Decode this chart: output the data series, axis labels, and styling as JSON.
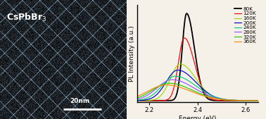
{
  "temperatures": [
    80,
    120,
    160,
    200,
    240,
    280,
    320,
    360
  ],
  "colors": [
    "#000000",
    "#ff0000",
    "#99dd00",
    "#0000cc",
    "#00cc88",
    "#9955ff",
    "#22cc00",
    "#ff8800"
  ],
  "peak_energies": [
    2.355,
    2.345,
    2.328,
    2.318,
    2.308,
    2.295,
    2.282,
    2.27
  ],
  "peak_heights": [
    1.0,
    0.72,
    0.42,
    0.35,
    0.28,
    0.24,
    0.2,
    0.18
  ],
  "widths_left": [
    0.018,
    0.024,
    0.04,
    0.048,
    0.055,
    0.062,
    0.068,
    0.074
  ],
  "widths_right": [
    0.032,
    0.042,
    0.065,
    0.075,
    0.085,
    0.09,
    0.095,
    0.1
  ],
  "xlim": [
    2.15,
    2.65
  ],
  "ylim": [
    -0.02,
    1.1
  ],
  "ylabel": "PL Intensity (a.u.)",
  "xlabel": "Energy (eV)",
  "xticks": [
    2.2,
    2.4,
    2.6
  ],
  "bg_color": "#f5f0e8",
  "legend_fontsize": 5.2,
  "axis_fontsize": 6.5,
  "tick_fontsize": 6.0,
  "tem_text": "CsPbBr$_3$",
  "tem_text_fontsize": 9,
  "scale_bar_label": "20nm",
  "scale_bar_fontsize": 6.5
}
